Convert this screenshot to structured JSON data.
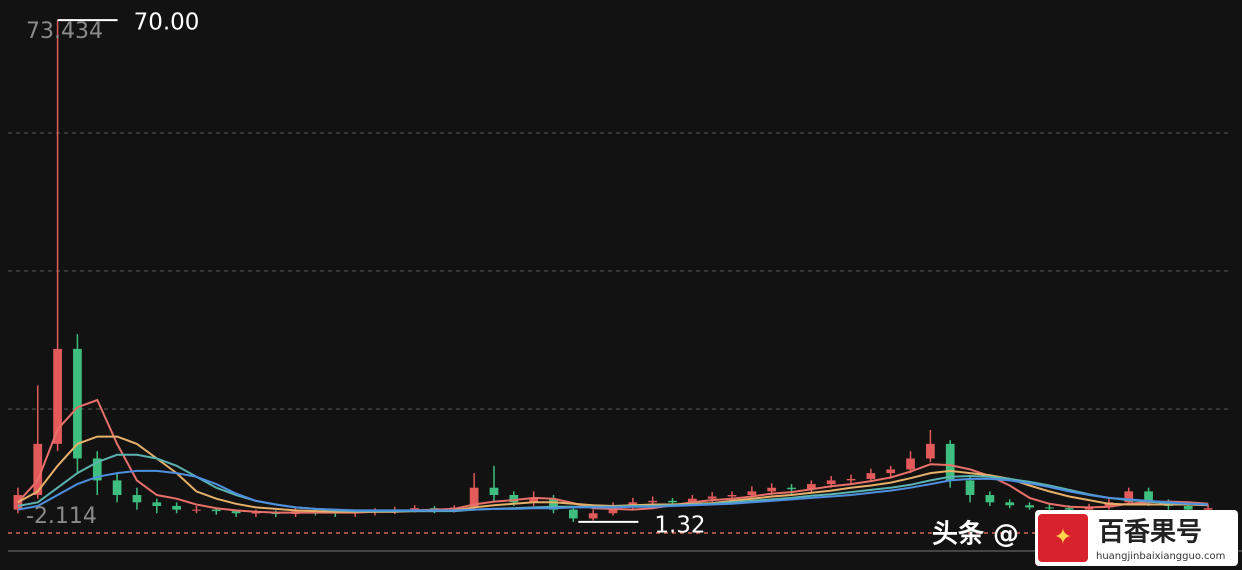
{
  "chart_data": {
    "type": "candlestick",
    "ylim": [
      -2.114,
      73.434
    ],
    "yticks": [
      73.434,
      -2.114
    ],
    "grid": true,
    "up_color": "#e25a5a",
    "down_color": "#3fbf7f",
    "open": [
      3,
      5,
      12,
      25,
      10,
      7,
      5,
      4,
      3.5,
      3,
      3,
      2.8,
      2.5,
      2.6,
      2.4,
      2.8,
      2.7,
      2.5,
      2.6,
      2.8,
      3,
      3.2,
      3,
      3.3,
      6,
      5,
      4,
      4.5,
      3,
      1.8,
      2.5,
      3.5,
      4,
      4.2,
      4,
      4.5,
      4.8,
      5,
      5.5,
      6,
      5.8,
      6.5,
      7,
      7.2,
      8,
      8.5,
      10,
      12,
      7,
      5,
      4,
      3.6,
      3.3,
      3.2,
      3,
      3.3,
      4,
      5.5,
      4,
      3.5,
      3
    ],
    "close": [
      5,
      12,
      25,
      10,
      7,
      5,
      4,
      3.5,
      3,
      3,
      2.8,
      2.5,
      2.6,
      2.4,
      2.8,
      2.7,
      2.5,
      2.6,
      2.8,
      3,
      3.2,
      3,
      3.3,
      6,
      5,
      4,
      4.5,
      3,
      1.8,
      2.5,
      3.5,
      4,
      4.2,
      4,
      4.5,
      4.8,
      5,
      5.5,
      6,
      5.8,
      6.5,
      7,
      7.2,
      8,
      8.5,
      10,
      12,
      7,
      5,
      4,
      3.6,
      3.3,
      3.2,
      3,
      3.3,
      4,
      5.5,
      4,
      3.5,
      3,
      3.2
    ],
    "high": [
      6,
      20,
      70,
      27,
      11,
      8,
      6,
      4.5,
      4,
      3.5,
      3.3,
      3,
      3,
      2.9,
      3.2,
      3.1,
      3,
      3,
      3.2,
      3.4,
      3.6,
      3.5,
      3.6,
      8,
      9,
      5.5,
      5.5,
      5,
      3.2,
      3,
      4,
      4.6,
      4.8,
      4.6,
      5,
      5.4,
      5.5,
      6.2,
      6.6,
      6.5,
      7,
      7.6,
      7.8,
      8.6,
      9,
      11,
      13.9,
      12.5,
      7.5,
      5.5,
      4.4,
      4,
      3.8,
      3.6,
      3.8,
      4.6,
      6,
      6,
      4.4,
      3.8,
      3.7
    ],
    "low": [
      2.5,
      4.5,
      11,
      8,
      5,
      4,
      3,
      2.5,
      2.5,
      2.5,
      2.3,
      2,
      2,
      2,
      2,
      2.2,
      2,
      2,
      2.2,
      2.4,
      2.6,
      2.5,
      2.6,
      3,
      4,
      3.5,
      3.5,
      2.5,
      1.32,
      1.5,
      2.2,
      3,
      3.5,
      3.5,
      3.5,
      4,
      4.3,
      4.5,
      5,
      5,
      5.3,
      6,
      6.5,
      6.8,
      7.5,
      8,
      9.5,
      6,
      4,
      3.5,
      3.2,
      3,
      2.8,
      2.6,
      2.8,
      3,
      3.8,
      3.5,
      3,
      2.6,
      2.6
    ],
    "series": [
      {
        "color": "#e8706a",
        "values": [
          4,
          7,
          14,
          17,
          18,
          12,
          7,
          5,
          4.5,
          3.7,
          3.2,
          2.9,
          2.7,
          2.6,
          2.6,
          2.6,
          2.6,
          2.6,
          2.7,
          2.7,
          2.9,
          3,
          3.1,
          3.7,
          4.1,
          4.3,
          4.6,
          4.5,
          3.9,
          3.2,
          3.1,
          3,
          3.2,
          3.6,
          4,
          4.3,
          4.5,
          4.8,
          5.2,
          5.4,
          5.8,
          6.2,
          6.5,
          6.9,
          7.4,
          8.2,
          9.2,
          9.1,
          8.5,
          7.6,
          6.3,
          4.6,
          3.8,
          3.4,
          3.3,
          3.4,
          3.8,
          4,
          4.1,
          4,
          3.8
        ]
      },
      {
        "color": "#e6b06a",
        "values": [
          4,
          5.5,
          9,
          12,
          13,
          13,
          12,
          10,
          8,
          5.5,
          4.5,
          3.8,
          3.3,
          3.1,
          2.9,
          2.8,
          2.7,
          2.7,
          2.7,
          2.7,
          2.8,
          2.8,
          2.9,
          3.3,
          3.6,
          3.8,
          4,
          4,
          3.8,
          3.6,
          3.5,
          3.6,
          3.7,
          3.7,
          3.8,
          3.9,
          4.2,
          4.5,
          4.8,
          5,
          5.3,
          5.6,
          6,
          6.3,
          6.7,
          7.3,
          8,
          8.3,
          8,
          7.7,
          7.2,
          6.3,
          5.5,
          4.8,
          4.3,
          3.8,
          3.7,
          3.7,
          3.7,
          3.7,
          3.6
        ]
      },
      {
        "color": "#5ab3b0",
        "values": [
          3.5,
          4,
          6,
          8,
          9.5,
          10.5,
          10.5,
          10,
          9,
          7.5,
          6,
          5,
          4.2,
          3.7,
          3.3,
          3.1,
          2.9,
          2.8,
          2.8,
          2.8,
          2.8,
          2.8,
          2.8,
          3,
          3.1,
          3.2,
          3.3,
          3.4,
          3.4,
          3.4,
          3.4,
          3.5,
          3.5,
          3.6,
          3.7,
          3.8,
          4,
          4.2,
          4.4,
          4.6,
          4.9,
          5.1,
          5.4,
          5.7,
          6,
          6.4,
          7,
          7.5,
          7.6,
          7.5,
          7.2,
          6.8,
          6.3,
          5.7,
          5.1,
          4.6,
          4.3,
          4.1,
          3.9,
          3.8,
          3.7
        ]
      },
      {
        "color": "#4f8fe0",
        "values": [
          3,
          3.5,
          5,
          6.5,
          7.5,
          8,
          8.3,
          8.3,
          8,
          7.5,
          6.5,
          5.2,
          4.2,
          3.7,
          3.3,
          3.1,
          3,
          2.9,
          2.9,
          2.9,
          2.9,
          2.9,
          2.9,
          3,
          3.1,
          3.1,
          3.2,
          3.2,
          3.3,
          3.3,
          3.3,
          3.4,
          3.4,
          3.5,
          3.6,
          3.7,
          3.8,
          4,
          4.2,
          4.4,
          4.6,
          4.8,
          5,
          5.3,
          5.6,
          6,
          6.5,
          7,
          7.2,
          7.2,
          7,
          6.6,
          6.1,
          5.5,
          5,
          4.6,
          4.4,
          4.2,
          4,
          3.8,
          3.7
        ]
      }
    ],
    "annotations": [
      {
        "value": 70,
        "label": "70.00"
      },
      {
        "value": 1.32,
        "label": "1.32"
      }
    ],
    "watermark": {
      "prefix": "头条 @",
      "brand": "百香果号",
      "site": "huangjinbaixiangguo.com"
    }
  }
}
